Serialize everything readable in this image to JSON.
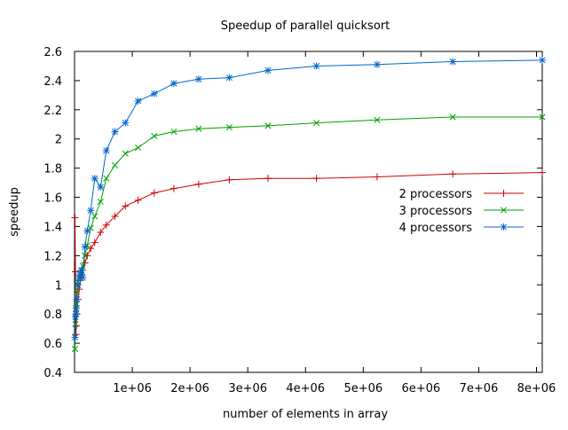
{
  "chart_data": {
    "type": "line",
    "title": "Speedup of parallel quicksort",
    "xlabel": "number of elements in array",
    "ylabel": "speedup",
    "xlim": [
      0,
      8100000
    ],
    "ylim": [
      0.4,
      2.6
    ],
    "x_ticks": [
      {
        "value": 1000000,
        "label": "1e+06"
      },
      {
        "value": 2000000,
        "label": "2e+06"
      },
      {
        "value": 3000000,
        "label": "3e+06"
      },
      {
        "value": 4000000,
        "label": "4e+06"
      },
      {
        "value": 5000000,
        "label": "5e+06"
      },
      {
        "value": 6000000,
        "label": "6e+06"
      },
      {
        "value": 7000000,
        "label": "7e+06"
      },
      {
        "value": 8000000,
        "label": "8e+06"
      }
    ],
    "y_ticks": [
      {
        "value": 0.4,
        "label": "0.4"
      },
      {
        "value": 0.6,
        "label": "0.6"
      },
      {
        "value": 0.8,
        "label": "0.8"
      },
      {
        "value": 1.0,
        "label": "1"
      },
      {
        "value": 1.2,
        "label": "1.2"
      },
      {
        "value": 1.4,
        "label": "1.4"
      },
      {
        "value": 1.6,
        "label": "1.6"
      },
      {
        "value": 1.8,
        "label": "1.8"
      },
      {
        "value": 2.0,
        "label": "2"
      },
      {
        "value": 2.2,
        "label": "2.2"
      },
      {
        "value": 2.4,
        "label": "2.4"
      },
      {
        "value": 2.6,
        "label": "2.6"
      }
    ],
    "grid": false,
    "legend_position": "right",
    "series": [
      {
        "name": "2 processors",
        "color": "#cc0000",
        "marker": "plus",
        "points": [
          [
            8000,
            1.46
          ],
          [
            16000,
            1.09
          ],
          [
            24000,
            0.66
          ],
          [
            32000,
            0.72
          ],
          [
            40000,
            0.8
          ],
          [
            60000,
            0.9
          ],
          [
            80000,
            0.97
          ],
          [
            100000,
            1.03
          ],
          [
            120000,
            1.07
          ],
          [
            140000,
            1.1
          ],
          [
            180000,
            1.15
          ],
          [
            220000,
            1.2
          ],
          [
            280000,
            1.25
          ],
          [
            350000,
            1.29
          ],
          [
            450000,
            1.36
          ],
          [
            550000,
            1.41
          ],
          [
            700000,
            1.47
          ],
          [
            880000,
            1.54
          ],
          [
            1100000,
            1.58
          ],
          [
            1380000,
            1.63
          ],
          [
            1720000,
            1.66
          ],
          [
            2150000,
            1.69
          ],
          [
            2680000,
            1.72
          ],
          [
            3350000,
            1.73
          ],
          [
            4190000,
            1.73
          ],
          [
            5240000,
            1.74
          ],
          [
            6550000,
            1.76
          ],
          [
            8100000,
            1.77
          ]
        ]
      },
      {
        "name": "3 processors",
        "color": "#00a000",
        "marker": "cross",
        "points": [
          [
            8000,
            0.56
          ],
          [
            16000,
            0.73
          ],
          [
            24000,
            0.8
          ],
          [
            32000,
            0.87
          ],
          [
            40000,
            0.95
          ],
          [
            60000,
            1.02
          ],
          [
            80000,
            1.05
          ],
          [
            100000,
            1.08
          ],
          [
            120000,
            1.1
          ],
          [
            140000,
            1.13
          ],
          [
            180000,
            1.2
          ],
          [
            220000,
            1.27
          ],
          [
            280000,
            1.39
          ],
          [
            350000,
            1.47
          ],
          [
            450000,
            1.57
          ],
          [
            550000,
            1.73
          ],
          [
            700000,
            1.82
          ],
          [
            880000,
            1.9
          ],
          [
            1100000,
            1.94
          ],
          [
            1380000,
            2.02
          ],
          [
            1720000,
            2.05
          ],
          [
            2150000,
            2.07
          ],
          [
            2680000,
            2.08
          ],
          [
            3350000,
            2.09
          ],
          [
            4190000,
            2.11
          ],
          [
            5240000,
            2.13
          ],
          [
            6550000,
            2.15
          ],
          [
            8100000,
            2.15
          ]
        ]
      },
      {
        "name": "4 processors",
        "color": "#0066cc",
        "marker": "star",
        "points": [
          [
            8000,
            0.64
          ],
          [
            16000,
            0.78
          ],
          [
            24000,
            0.8
          ],
          [
            32000,
            0.84
          ],
          [
            40000,
            0.9
          ],
          [
            60000,
            1.0
          ],
          [
            80000,
            1.05
          ],
          [
            100000,
            1.08
          ],
          [
            120000,
            1.1
          ],
          [
            140000,
            1.05
          ],
          [
            180000,
            1.26
          ],
          [
            220000,
            1.37
          ],
          [
            280000,
            1.51
          ],
          [
            350000,
            1.73
          ],
          [
            450000,
            1.67
          ],
          [
            550000,
            1.92
          ],
          [
            700000,
            2.05
          ],
          [
            880000,
            2.11
          ],
          [
            1100000,
            2.26
          ],
          [
            1380000,
            2.31
          ],
          [
            1720000,
            2.38
          ],
          [
            2150000,
            2.41
          ],
          [
            2680000,
            2.42
          ],
          [
            3350000,
            2.47
          ],
          [
            4190000,
            2.5
          ],
          [
            5240000,
            2.51
          ],
          [
            6550000,
            2.53
          ],
          [
            8100000,
            2.54
          ]
        ]
      }
    ]
  }
}
